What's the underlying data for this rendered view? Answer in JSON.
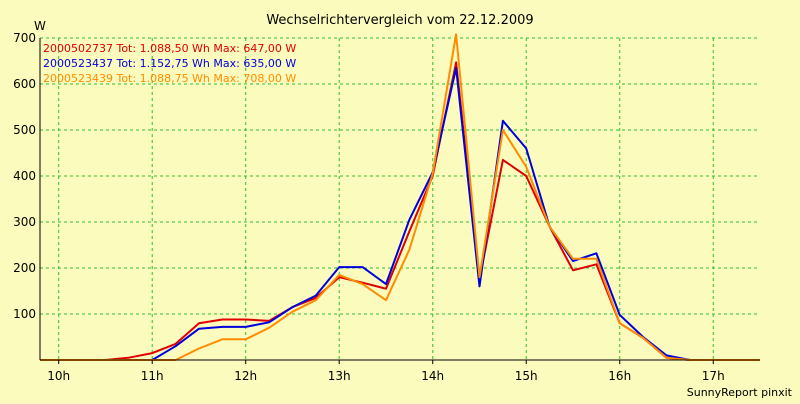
{
  "chart_data": {
    "type": "line",
    "title": "Wechselrichtervergleich vom 22.12.2009",
    "ylabel": "W",
    "xlabel": "",
    "footer": "SunnyReport pinxit",
    "ylim": [
      0,
      700
    ],
    "xlim": [
      9.8,
      17.5
    ],
    "y_ticks": [
      100,
      200,
      300,
      400,
      500,
      600,
      700
    ],
    "y_tick_labels": [
      "100",
      "200",
      "300",
      "400",
      "500",
      "600",
      "700"
    ],
    "x_ticks": [
      10,
      11,
      12,
      13,
      14,
      15,
      16,
      17
    ],
    "x_tick_labels": [
      "10h",
      "11h",
      "12h",
      "13h",
      "14h",
      "15h",
      "16h",
      "17h"
    ],
    "grid": true,
    "legend_position": "top-left",
    "x": [
      9.75,
      10.0,
      10.25,
      10.5,
      10.75,
      11.0,
      11.25,
      11.5,
      11.75,
      12.0,
      12.25,
      12.5,
      12.75,
      13.0,
      13.25,
      13.5,
      13.75,
      14.0,
      14.25,
      14.5,
      14.75,
      15.0,
      15.25,
      15.5,
      15.75,
      16.0,
      16.25,
      16.5,
      16.75,
      17.0,
      17.25,
      17.5
    ],
    "series": [
      {
        "name": "2000502737",
        "legend_label": "2000502737 Tot: 1.088,50 Wh Max: 647,00 W",
        "color": "#e00000",
        "values": [
          0,
          0,
          0,
          0,
          5,
          15,
          35,
          80,
          88,
          88,
          85,
          115,
          135,
          180,
          168,
          155,
          280,
          400,
          647,
          175,
          435,
          400,
          290,
          195,
          208,
          80,
          48,
          5,
          0,
          0,
          0,
          0
        ]
      },
      {
        "name": "2000523437",
        "legend_label": "2000523437 Tot: 1.152,75 Wh Max: 635,00 W",
        "color": "#0000dd",
        "values": [
          0,
          0,
          0,
          0,
          0,
          0,
          30,
          68,
          72,
          72,
          82,
          115,
          140,
          202,
          202,
          165,
          305,
          408,
          635,
          160,
          520,
          460,
          290,
          215,
          232,
          98,
          50,
          10,
          0,
          0,
          0,
          0
        ]
      },
      {
        "name": "2000523439",
        "legend_label": "2000523439 Tot: 1.088,75 Wh Max: 708,00 W",
        "color": "#ff8c00",
        "values": [
          0,
          0,
          0,
          0,
          0,
          0,
          0,
          25,
          45,
          45,
          70,
          105,
          130,
          185,
          165,
          130,
          240,
          405,
          708,
          180,
          500,
          420,
          290,
          220,
          220,
          80,
          48,
          5,
          0,
          0,
          0,
          0
        ]
      }
    ]
  }
}
